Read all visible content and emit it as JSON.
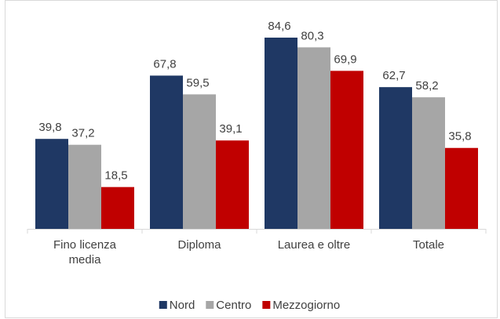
{
  "chart_data": {
    "type": "bar",
    "categories": [
      "Fino licenza media",
      "Diploma",
      "Laurea e oltre",
      "Totale"
    ],
    "series": [
      {
        "name": "Nord",
        "color": "#1f3864",
        "values": [
          39.8,
          67.8,
          84.6,
          62.7
        ],
        "value_labels": [
          "39,8",
          "67,8",
          "84,6",
          "62,7"
        ]
      },
      {
        "name": "Centro",
        "color": "#a6a6a6",
        "values": [
          37.2,
          59.5,
          80.3,
          58.2
        ],
        "value_labels": [
          "37,2",
          "59,5",
          "80,3",
          "58,2"
        ]
      },
      {
        "name": "Mezzogiorno",
        "color": "#c00000",
        "values": [
          18.5,
          39.1,
          69.9,
          35.8
        ],
        "value_labels": [
          "18,5",
          "39,1",
          "69,9",
          "35,8"
        ]
      }
    ],
    "legend": "bottom"
  }
}
